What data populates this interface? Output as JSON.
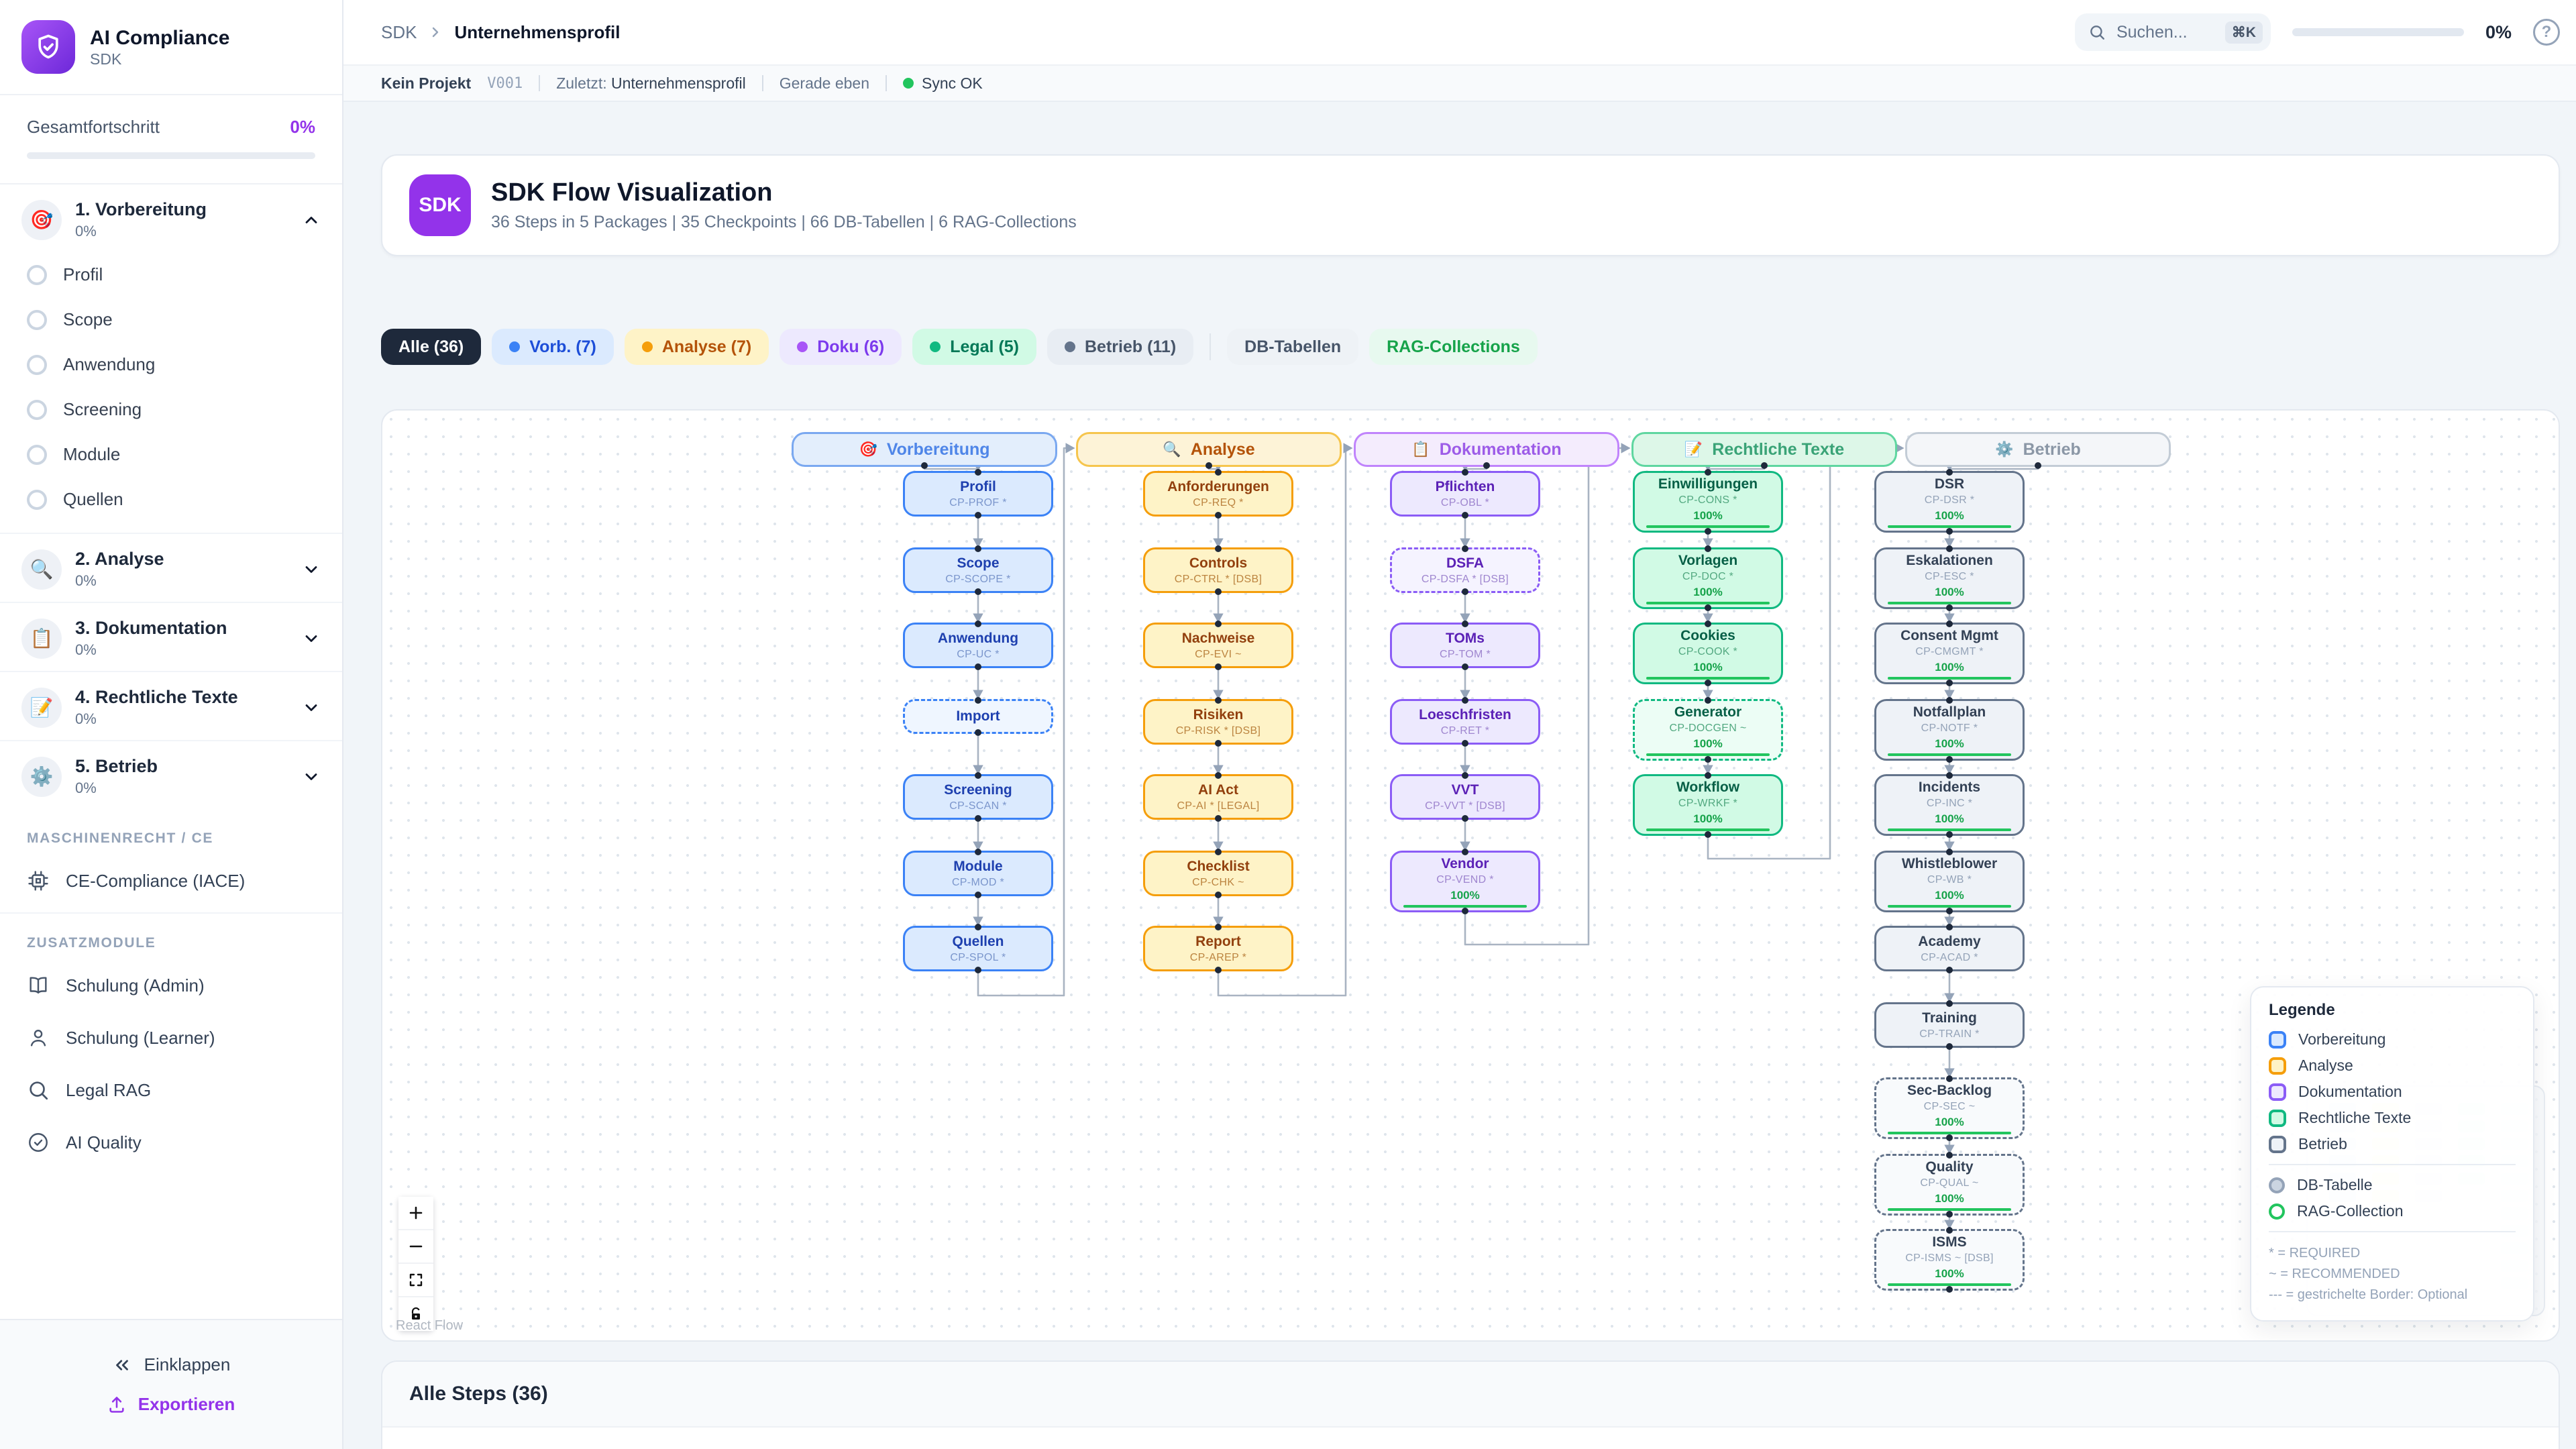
{
  "app": {
    "name": "AI Compliance",
    "subtitle": "SDK"
  },
  "sidebar": {
    "progress_label": "Gesamtfortschritt",
    "progress_value": "0%",
    "sections": [
      {
        "label": "1. Vorbereitung",
        "pct": "0%",
        "emoji": "🎯",
        "expanded": true,
        "children": [
          "Profil",
          "Scope",
          "Anwendung",
          "Screening",
          "Module",
          "Quellen"
        ]
      },
      {
        "label": "2. Analyse",
        "pct": "0%",
        "emoji": "🔍",
        "expanded": false
      },
      {
        "label": "3. Dokumentation",
        "pct": "0%",
        "emoji": "📋",
        "expanded": false
      },
      {
        "label": "4. Rechtliche Texte",
        "pct": "0%",
        "emoji": "📝",
        "expanded": false
      },
      {
        "label": "5. Betrieb",
        "pct": "0%",
        "emoji": "⚙️",
        "expanded": false
      }
    ],
    "group1_label": "MASCHINENRECHT / CE",
    "group1_items": [
      {
        "label": "CE-Compliance (IACE)",
        "icon": "chip"
      }
    ],
    "group2_label": "ZUSATZMODULE",
    "group2_items": [
      {
        "label": "Schulung (Admin)",
        "icon": "book"
      },
      {
        "label": "Schulung (Learner)",
        "icon": "user"
      },
      {
        "label": "Legal RAG",
        "icon": "search"
      },
      {
        "label": "AI Quality",
        "icon": "check"
      }
    ],
    "collapse_label": "Einklappen",
    "export_label": "Exportieren"
  },
  "topbar": {
    "breadcrumb": [
      "SDK",
      "Unternehmensprofil"
    ],
    "search_placeholder": "Suchen...",
    "search_kbd": "⌘K",
    "progress_value": "0%",
    "help_glyph": "?"
  },
  "statusbar": {
    "project": "Kein Projekt",
    "version": "V001",
    "last_label": "Zuletzt:",
    "last_value": "Unternehmensprofil",
    "time": "Gerade eben",
    "sync": "Sync OK"
  },
  "flowcard": {
    "badge": "SDK",
    "title": "SDK Flow Visualization",
    "subtitle": "36 Steps in 5 Packages | 35 Checkpoints | 66 DB-Tabellen | 6 RAG-Collections"
  },
  "filters": [
    {
      "label": "Alle (36)",
      "style": "alle"
    },
    {
      "label": "Vorb. (7)",
      "style": "vorb",
      "dot": "#3b82f6"
    },
    {
      "label": "Analyse (7)",
      "style": "analyse",
      "dot": "#f59e0b"
    },
    {
      "label": "Doku (6)",
      "style": "doku",
      "dot": "#a855f7"
    },
    {
      "label": "Legal (5)",
      "style": "legal",
      "dot": "#10b981"
    },
    {
      "label": "Betrieb (11)",
      "style": "betrieb",
      "dot": "#64748b"
    },
    {
      "divider": true
    },
    {
      "label": "DB-Tabellen",
      "style": "db"
    },
    {
      "label": "RAG-Collections",
      "style": "rag"
    }
  ],
  "flow": {
    "columns": [
      {
        "label": "Vorbereitung",
        "emoji": "🎯",
        "color": "blue",
        "nodes": [
          {
            "title": "Profil",
            "code": "CP-PROF *"
          },
          {
            "title": "Scope",
            "code": "CP-SCOPE *"
          },
          {
            "title": "Anwendung",
            "code": "CP-UC *"
          },
          {
            "title": "Import",
            "dashed": true
          },
          {
            "title": "Screening",
            "code": "CP-SCAN *"
          },
          {
            "title": "Module",
            "code": "CP-MOD *"
          },
          {
            "title": "Quellen",
            "code": "CP-SPOL *"
          }
        ]
      },
      {
        "label": "Analyse",
        "emoji": "🔍",
        "color": "amber",
        "nodes": [
          {
            "title": "Anforderungen",
            "code": "CP-REQ *"
          },
          {
            "title": "Controls",
            "code": "CP-CTRL * [DSB]"
          },
          {
            "title": "Nachweise",
            "code": "CP-EVI ~"
          },
          {
            "title": "Risiken",
            "code": "CP-RISK * [DSB]"
          },
          {
            "title": "AI Act",
            "code": "CP-AI * [LEGAL]"
          },
          {
            "title": "Checklist",
            "code": "CP-CHK ~"
          },
          {
            "title": "Report",
            "code": "CP-AREP *"
          }
        ]
      },
      {
        "label": "Dokumentation",
        "emoji": "📋",
        "color": "purple",
        "nodes": [
          {
            "title": "Pflichten",
            "code": "CP-OBL *"
          },
          {
            "title": "DSFA",
            "code": "CP-DSFA * [DSB]",
            "dashed": true
          },
          {
            "title": "TOMs",
            "code": "CP-TOM *"
          },
          {
            "title": "Loeschfristen",
            "code": "CP-RET *"
          },
          {
            "title": "VVT",
            "code": "CP-VVT * [DSB]"
          },
          {
            "title": "Vendor",
            "code": "CP-VEND *",
            "progress": "100%"
          }
        ]
      },
      {
        "label": "Rechtliche Texte",
        "emoji": "📝",
        "color": "green",
        "nodes": [
          {
            "title": "Einwilligungen",
            "code": "CP-CONS *",
            "progress": "100%"
          },
          {
            "title": "Vorlagen",
            "code": "CP-DOC *",
            "progress": "100%"
          },
          {
            "title": "Cookies",
            "code": "CP-COOK *",
            "progress": "100%"
          },
          {
            "title": "Generator",
            "code": "CP-DOCGEN ~",
            "progress": "100%",
            "dashed": true
          },
          {
            "title": "Workflow",
            "code": "CP-WRKF *",
            "progress": "100%"
          }
        ]
      },
      {
        "label": "Betrieb",
        "emoji": "⚙️",
        "color": "slate",
        "nodes": [
          {
            "title": "DSR",
            "code": "CP-DSR *",
            "progress": "100%"
          },
          {
            "title": "Eskalationen",
            "code": "CP-ESC *",
            "progress": "100%"
          },
          {
            "title": "Consent Mgmt",
            "code": "CP-CMGMT *",
            "progress": "100%"
          },
          {
            "title": "Notfallplan",
            "code": "CP-NOTF *",
            "progress": "100%"
          },
          {
            "title": "Incidents",
            "code": "CP-INC *",
            "progress": "100%"
          },
          {
            "title": "Whistleblower",
            "code": "CP-WB *",
            "progress": "100%"
          },
          {
            "title": "Academy",
            "code": "CP-ACAD *"
          },
          {
            "title": "Training",
            "code": "CP-TRAIN *"
          },
          {
            "title": "Sec-Backlog",
            "code": "CP-SEC ~",
            "progress": "100%",
            "dashed": true
          },
          {
            "title": "Quality",
            "code": "CP-QUAL ~",
            "progress": "100%",
            "dashed": true
          },
          {
            "title": "ISMS",
            "code": "CP-ISMS ~ [DSB]",
            "progress": "100%",
            "dashed": true
          }
        ]
      }
    ]
  },
  "legend": {
    "title": "Legende",
    "categories": [
      {
        "label": "Vorbereitung",
        "color": "blue"
      },
      {
        "label": "Analyse",
        "color": "amber"
      },
      {
        "label": "Dokumentation",
        "color": "purple"
      },
      {
        "label": "Rechtliche Texte",
        "color": "green"
      },
      {
        "label": "Betrieb",
        "color": "slate"
      }
    ],
    "shapes": [
      {
        "label": "DB-Tabelle",
        "kind": "db"
      },
      {
        "label": "RAG-Collection",
        "kind": "rag"
      }
    ],
    "notes": [
      "* = REQUIRED",
      "~ = RECOMMENDED",
      "--- = gestrichelte Border: Optional"
    ]
  },
  "steps": {
    "title": "Alle Steps (36)"
  },
  "attribution": "React Flow",
  "colors": {
    "accent": "#9333ea",
    "sync_green": "#22c55e",
    "progress_green": "#16a34a",
    "edge": "#a9b4c2",
    "cat": {
      "blue": {
        "bg": "#dbeafe",
        "border": "#3b82f6",
        "title": "#1e40af",
        "sub": "#7b96cc",
        "hbg": "#e3eefc",
        "hborder": "#7aa8f0",
        "htext": "#4f86e8",
        "dim": "#eff6ff"
      },
      "amber": {
        "bg": "#fef3c7",
        "border": "#f59e0b",
        "title": "#92400e",
        "sub": "#bc8440",
        "hbg": "#fdf3d7",
        "hborder": "#f6c54d",
        "htext": "#b45309",
        "dim": "#fffbeb"
      },
      "purple": {
        "bg": "#ede9fe",
        "border": "#8b5cf6",
        "title": "#5b21b6",
        "sub": "#9f86cf",
        "hbg": "#f4ecfd",
        "hborder": "#c084fc",
        "htext": "#9d5ce8",
        "dim": "#f5f3ff"
      },
      "green": {
        "bg": "#d1fae5",
        "border": "#10b981",
        "title": "#065f46",
        "sub": "#53a981",
        "hbg": "#ddf7e8",
        "hborder": "#5fd6a0",
        "htext": "#3aa377",
        "dim": "#ecfdf5"
      },
      "slate": {
        "bg": "#eef2f7",
        "border": "#64748b",
        "title": "#334155",
        "sub": "#94a3b8",
        "hbg": "#f4f6f9",
        "hborder": "#c3ccd6",
        "htext": "#8b97a6",
        "dim": "#f8fafc"
      }
    },
    "pills": {
      "alle": {
        "bg": "#1e293b",
        "fg": "#ffffff"
      },
      "vorb": {
        "bg": "#dbeafe",
        "fg": "#1d4ed8"
      },
      "analyse": {
        "bg": "#fef3c7",
        "fg": "#b45309"
      },
      "doku": {
        "bg": "#ede9fe",
        "fg": "#7c3aed"
      },
      "legal": {
        "bg": "#d1fae5",
        "fg": "#047857"
      },
      "betrieb": {
        "bg": "#e8edf3",
        "fg": "#475569"
      },
      "db": {
        "bg": "#eef2f6",
        "fg": "#475569"
      },
      "rag": {
        "bg": "#e7f9ef",
        "fg": "#16a34a"
      }
    }
  }
}
